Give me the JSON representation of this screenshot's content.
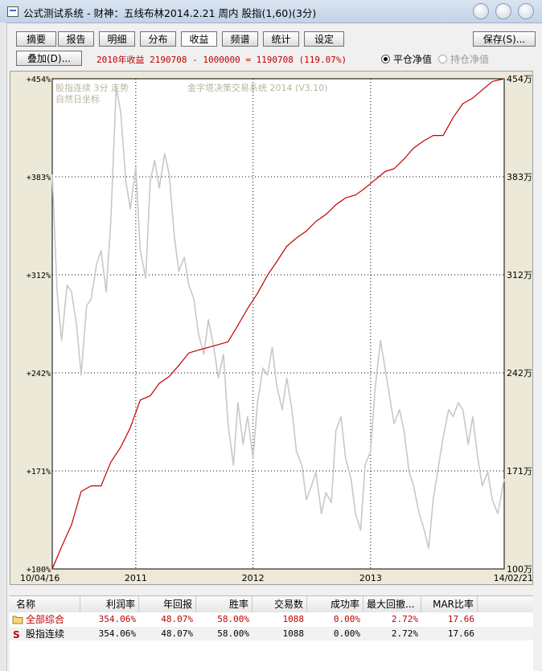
{
  "window": {
    "title": "公式测试系统 - 财神：五线布林2014.2.21 周内 股指(1,60)(3分)"
  },
  "toolbar": {
    "tabs": [
      "摘要",
      "报告",
      "明细",
      "分布",
      "收益",
      "频谱",
      "统计",
      "设定"
    ],
    "active_tab": "收益",
    "save_label": "保存(S)...",
    "overlay_label": "叠加(D)...",
    "summary_text": "2010年收益 2190708 - 1000000 = 1190708 (119.07%)",
    "radio_close": "平仓净值",
    "radio_hold": "持仓净值"
  },
  "colors": {
    "equity_line": "#c00000",
    "price_line": "#c8c8c8",
    "chart_bg": "#ffffff",
    "panel_bg": "#ece9d8",
    "summary_text": "#c00000"
  },
  "chart_data": {
    "type": "line",
    "overlay_text": [
      "股指连续 3分 走势",
      "自然日坐标",
      "金字塔决策交易系统 2014 (V3.10)"
    ],
    "y_left_ticks": [
      "+454%",
      "+383%",
      "+312%",
      "+242%",
      "+171%",
      "+100%"
    ],
    "y_right_ticks": [
      "454万",
      "383万",
      "312万",
      "242万",
      "171万",
      "100万"
    ],
    "x_ticks": [
      "10/04/16",
      "2011",
      "2012",
      "2013",
      "14/02/21"
    ],
    "y_range": [
      100,
      454
    ],
    "x_range": [
      "2010-04-16",
      "2014-02-21"
    ],
    "grid": true,
    "series": [
      {
        "kind": "equity",
        "x": [
          "2010-04-16",
          "2010-05-15",
          "2010-06-15",
          "2010-07-15",
          "2010-08-15",
          "2010-09-15",
          "2010-10-15",
          "2010-11-15",
          "2010-12-15",
          "2011-01-15",
          "2011-02-15",
          "2011-03-15",
          "2011-04-15",
          "2011-05-15",
          "2011-06-15",
          "2011-07-15",
          "2011-08-15",
          "2011-09-15",
          "2011-10-15",
          "2011-11-15",
          "2011-12-15",
          "2012-01-15",
          "2012-02-15",
          "2012-03-15",
          "2012-04-15",
          "2012-05-15",
          "2012-06-15",
          "2012-07-15",
          "2012-08-15",
          "2012-09-15",
          "2012-10-15",
          "2012-11-15",
          "2012-12-15",
          "2013-01-15",
          "2013-02-15",
          "2013-03-15",
          "2013-04-15",
          "2013-05-15",
          "2013-06-15",
          "2013-07-15",
          "2013-08-15",
          "2013-09-15",
          "2013-10-15",
          "2013-11-15",
          "2013-12-15",
          "2014-01-15",
          "2014-02-21"
        ],
        "y": [
          100,
          116,
          132,
          156,
          160,
          160,
          177,
          188,
          202,
          222,
          225,
          234,
          239,
          247,
          256,
          258,
          260,
          262,
          264,
          276,
          288,
          299,
          312,
          322,
          333,
          339,
          344,
          351,
          356,
          363,
          368,
          370,
          375,
          381,
          387,
          389,
          396,
          404,
          409,
          413,
          413,
          426,
          436,
          440,
          446,
          452,
          454
        ]
      },
      {
        "kind": "price",
        "x": [
          "2010-04-16",
          "2010-05-01",
          "2010-05-15",
          "2010-06-01",
          "2010-06-15",
          "2010-07-01",
          "2010-07-15",
          "2010-08-01",
          "2010-08-15",
          "2010-09-01",
          "2010-09-15",
          "2010-10-01",
          "2010-10-15",
          "2010-11-01",
          "2010-11-15",
          "2010-12-01",
          "2010-12-15",
          "2011-01-01",
          "2011-01-15",
          "2011-02-01",
          "2011-02-15",
          "2011-03-01",
          "2011-03-15",
          "2011-04-01",
          "2011-04-15",
          "2011-05-01",
          "2011-05-15",
          "2011-06-01",
          "2011-06-15",
          "2011-07-01",
          "2011-07-15",
          "2011-08-01",
          "2011-08-15",
          "2011-09-01",
          "2011-09-15",
          "2011-10-01",
          "2011-10-15",
          "2011-11-01",
          "2011-11-15",
          "2011-12-01",
          "2011-12-15",
          "2012-01-01",
          "2012-01-15",
          "2012-02-01",
          "2012-02-15",
          "2012-03-01",
          "2012-03-15",
          "2012-04-01",
          "2012-04-15",
          "2012-05-01",
          "2012-05-15",
          "2012-06-01",
          "2012-06-15",
          "2012-07-01",
          "2012-07-15",
          "2012-08-01",
          "2012-08-15",
          "2012-09-01",
          "2012-09-15",
          "2012-10-01",
          "2012-10-15",
          "2012-11-01",
          "2012-11-15",
          "2012-12-01",
          "2012-12-15",
          "2013-01-01",
          "2013-01-15",
          "2013-02-01",
          "2013-02-15",
          "2013-03-01",
          "2013-03-15",
          "2013-04-01",
          "2013-04-15",
          "2013-05-01",
          "2013-05-15",
          "2013-06-01",
          "2013-06-15",
          "2013-07-01",
          "2013-07-15",
          "2013-08-01",
          "2013-08-15",
          "2013-09-01",
          "2013-09-15",
          "2013-10-01",
          "2013-10-15",
          "2013-11-01",
          "2013-11-15",
          "2013-12-01",
          "2013-12-15",
          "2014-01-01",
          "2014-01-15",
          "2014-02-01",
          "2014-02-21"
        ],
        "y": [
          385,
          300,
          265,
          305,
          300,
          275,
          240,
          290,
          295,
          320,
          330,
          300,
          350,
          448,
          430,
          380,
          360,
          390,
          330,
          310,
          380,
          395,
          375,
          400,
          385,
          340,
          315,
          325,
          305,
          295,
          270,
          255,
          280,
          260,
          238,
          255,
          205,
          175,
          220,
          190,
          210,
          180,
          220,
          245,
          240,
          260,
          232,
          215,
          238,
          215,
          185,
          175,
          150,
          160,
          170,
          140,
          155,
          148,
          200,
          210,
          180,
          165,
          140,
          128,
          175,
          185,
          230,
          265,
          245,
          225,
          205,
          215,
          200,
          170,
          160,
          140,
          130,
          115,
          150,
          175,
          195,
          215,
          210,
          220,
          215,
          190,
          210,
          180,
          160,
          170,
          150,
          140,
          165
        ]
      }
    ]
  },
  "table": {
    "headers": [
      "名称",
      "利润率",
      "年回报",
      "胜率",
      "交易数",
      "成功率",
      "最大回撤...",
      "MAR比率"
    ],
    "rows": [
      {
        "icon": "folder-icon",
        "name": "全部综合",
        "profit": "354.06%",
        "annual": "48.07%",
        "win": "58.00%",
        "trades": "1088",
        "success": "0.00%",
        "drawdown": "2.72%",
        "mar": "17.66",
        "highlight": true
      },
      {
        "icon": "s-icon",
        "name": "股指连续",
        "profit": "354.06%",
        "annual": "48.07%",
        "win": "58.00%",
        "trades": "1088",
        "success": "0.00%",
        "drawdown": "2.72%",
        "mar": "17.66",
        "highlight": false
      }
    ]
  }
}
